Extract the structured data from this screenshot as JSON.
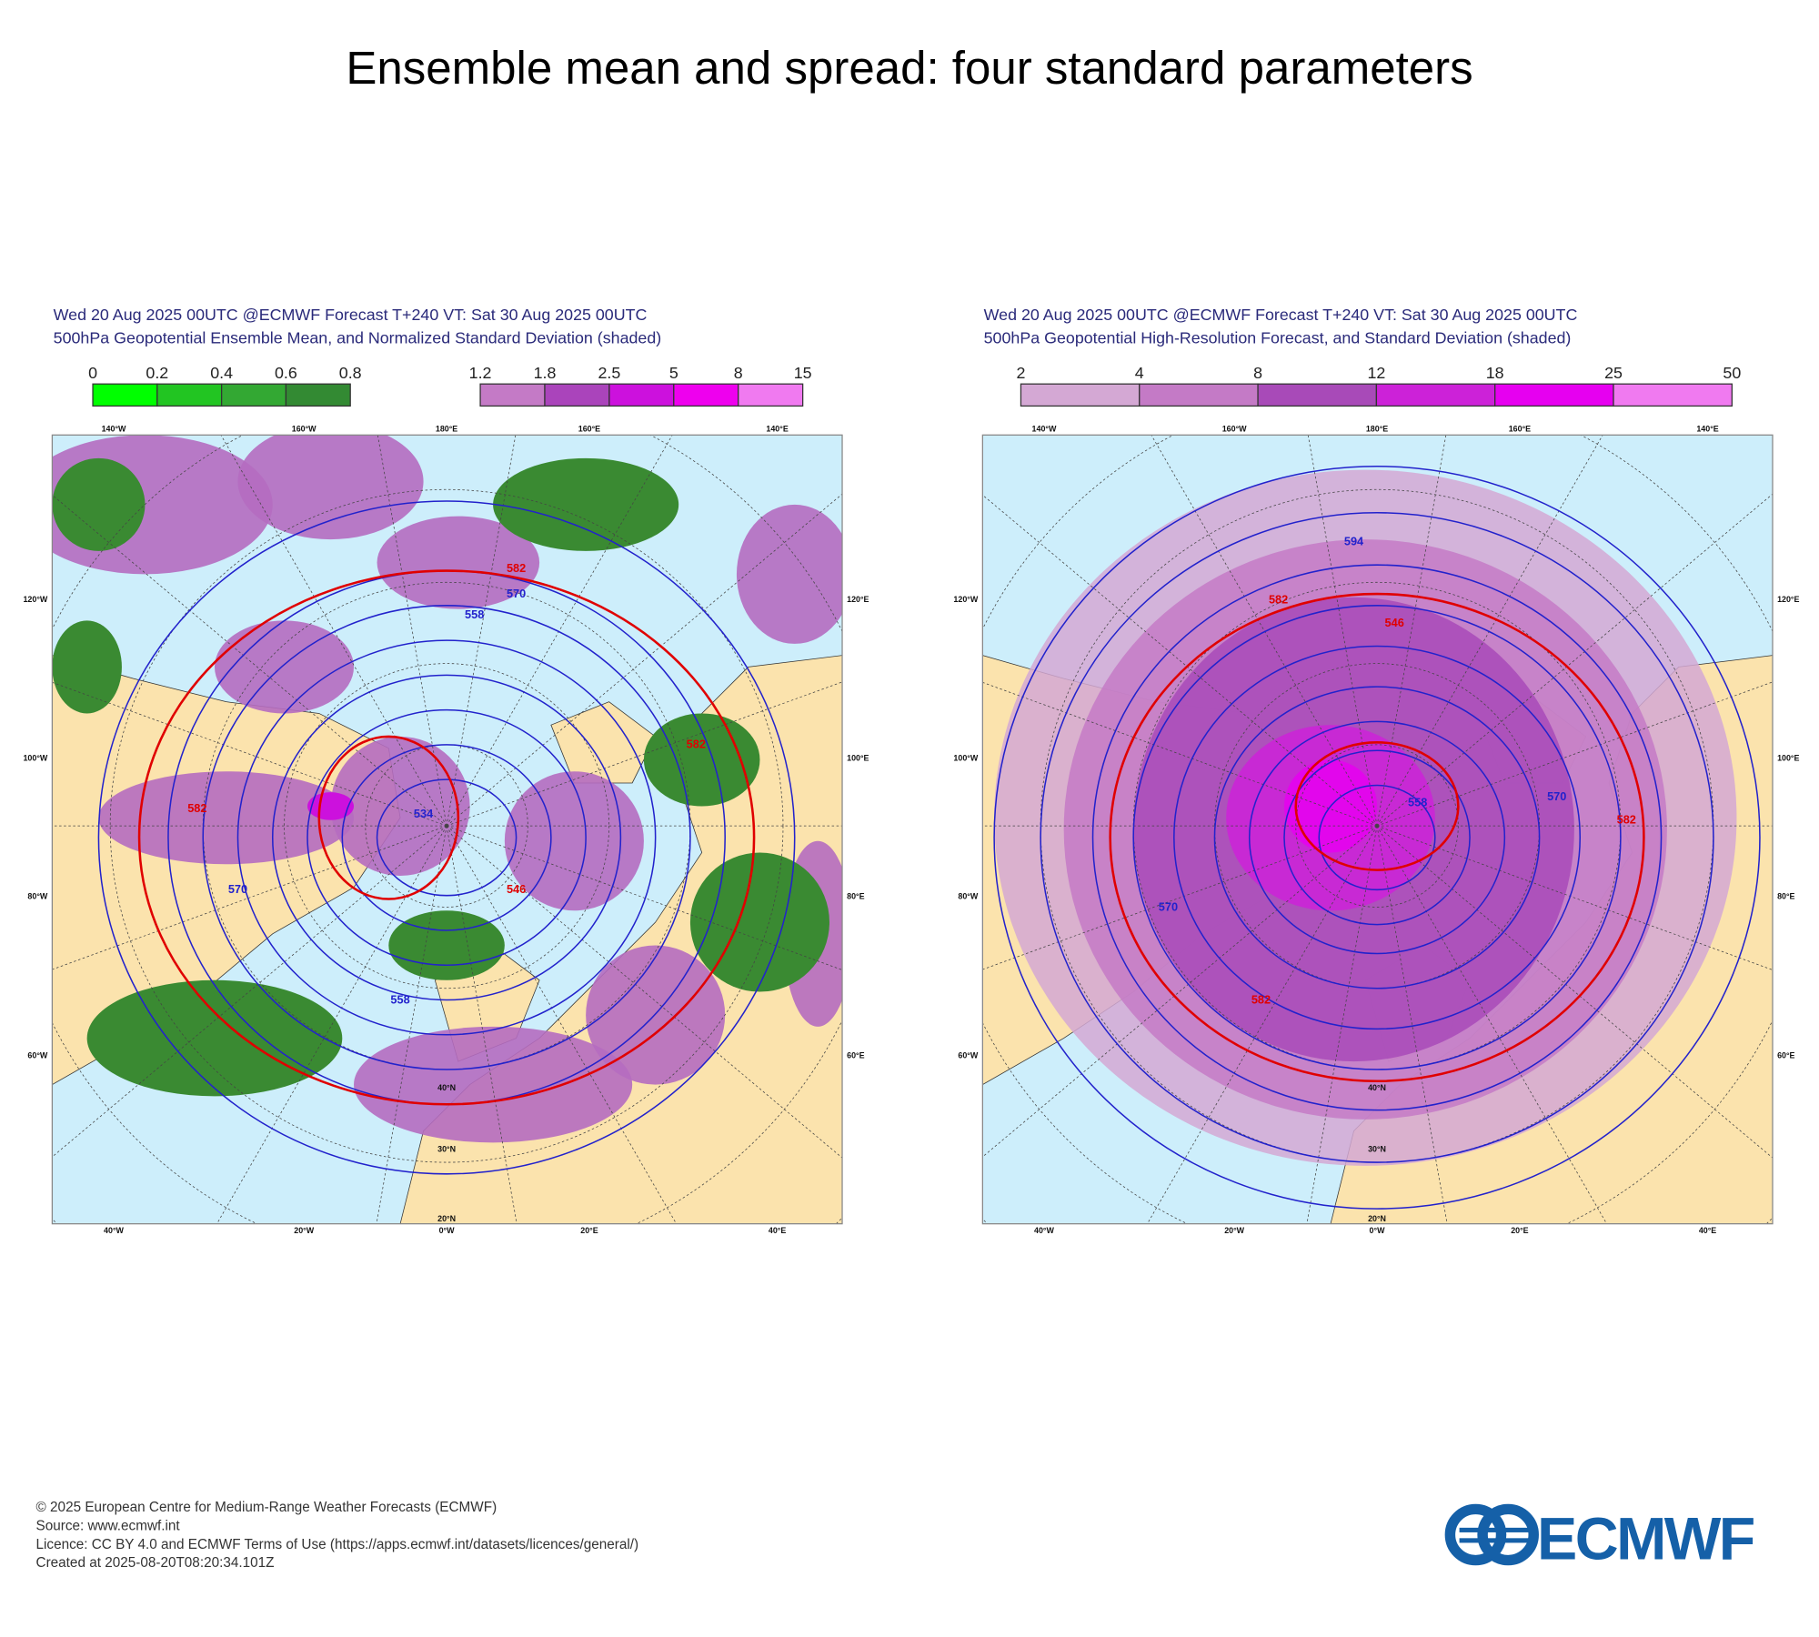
{
  "title": "Ensemble mean and spread: four standard parameters",
  "panels": [
    {
      "header": [
        "Wed 20 Aug 2025 00UTC @ECMWF Forecast T+240 VT: Sat 30 Aug 2025 00UTC",
        "500hPa Geopotential Ensemble Mean, and Normalized Standard Deviation (shaded)"
      ],
      "legends": [
        {
          "ticks": [
            0,
            0.2,
            0.4,
            0.6,
            0.8
          ],
          "colors": [
            "#00ff00",
            "#22c522",
            "#33a833",
            "#338a33"
          ]
        },
        {
          "ticks": [
            1.2,
            1.8,
            2.5,
            5,
            8,
            15
          ],
          "colors": [
            "#c47ac6",
            "#aa44bb",
            "#cc11dd",
            "#ee00ee",
            "#f07af0"
          ]
        }
      ],
      "lon_labels": {
        "top": [
          "140°W",
          "160°W",
          "180°E",
          "160°E",
          "140°E"
        ],
        "left": [
          "120°W",
          "100°W",
          "80°W",
          "60°W"
        ],
        "right": [
          "120°E",
          "100°E",
          "80°E",
          "60°E"
        ],
        "bottom": [
          "40°W",
          "20°W",
          "0°W",
          "20°E",
          "40°E"
        ]
      },
      "lat_labels": [
        "40°N",
        "30°N",
        "20°N"
      ],
      "contour_labels": [
        "582",
        "570",
        "558",
        "582",
        "570",
        "558",
        "582",
        "546",
        "534"
      ]
    },
    {
      "header": [
        "Wed 20 Aug 2025 00UTC @ECMWF Forecast T+240 VT: Sat 30 Aug 2025 00UTC",
        "500hPa Geopotential High-Resolution Forecast, and Standard Deviation (shaded)"
      ],
      "legends": [
        {
          "ticks": [
            2,
            4,
            8,
            12,
            18,
            25,
            50
          ],
          "colors": [
            "#d4a8d4",
            "#c47ac6",
            "#a84ab8",
            "#cc22d8",
            "#e600f0",
            "#f07af0"
          ]
        }
      ],
      "lon_labels": {
        "top": [
          "140°W",
          "160°W",
          "180°E",
          "160°E",
          "140°E"
        ],
        "left": [
          "120°W",
          "100°W",
          "80°W",
          "60°W"
        ],
        "right": [
          "120°E",
          "100°E",
          "80°E",
          "60°E"
        ],
        "bottom": [
          "40°W",
          "20°W",
          "0°W",
          "20°E",
          "40°E"
        ]
      },
      "lat_labels": [
        "40°N",
        "30°N",
        "20°N"
      ],
      "contour_labels": [
        "594",
        "582",
        "546",
        "558",
        "570",
        "582",
        "570",
        "582"
      ]
    }
  ],
  "footer": [
    "© 2025 European Centre for Medium-Range Weather Forecasts (ECMWF)",
    "Source: www.ecmwf.int",
    "Licence: CC BY 4.0 and ECMWF Terms of Use (https://apps.ecmwf.int/datasets/licences/general/)",
    "Created at 2025-08-20T08:20:34.101Z"
  ],
  "logo": "ECMWF"
}
